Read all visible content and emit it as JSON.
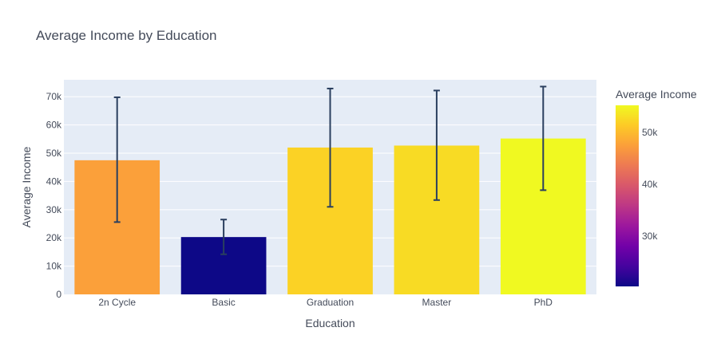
{
  "chart_data": {
    "type": "bar",
    "title": "Average Income by Education",
    "xlabel": "Education",
    "ylabel": "Average Income",
    "categories": [
      "2n Cycle",
      "Basic",
      "Graduation",
      "Master",
      "PhD"
    ],
    "values": [
      47500,
      20300,
      52000,
      52700,
      55200
    ],
    "error_low": [
      25600,
      14200,
      31000,
      33400,
      36900
    ],
    "error_high": [
      69800,
      26500,
      72900,
      72200,
      73600
    ],
    "ylim": [
      0,
      76000
    ],
    "yticks": [
      0,
      10000,
      20000,
      30000,
      40000,
      50000,
      60000,
      70000
    ],
    "ytick_labels": [
      "0",
      "10k",
      "20k",
      "30k",
      "40k",
      "50k",
      "60k",
      "70k"
    ],
    "grid": true,
    "colorbar": {
      "title": "Average Income",
      "range": [
        20300,
        55200
      ],
      "ticks": [
        30000,
        40000,
        50000
      ],
      "tick_labels": [
        "30k",
        "40k",
        "50k"
      ],
      "colorscale": [
        "#0d0887",
        "#46039f",
        "#7201a8",
        "#9c179e",
        "#bd3786",
        "#d8576b",
        "#ed7953",
        "#fb9f3a",
        "#fdca26",
        "#f0f921"
      ]
    },
    "colors": {
      "plot_bg": "#e5ecf6",
      "error_bar": "#2a3f5f",
      "gridline": "#ffffff"
    }
  }
}
